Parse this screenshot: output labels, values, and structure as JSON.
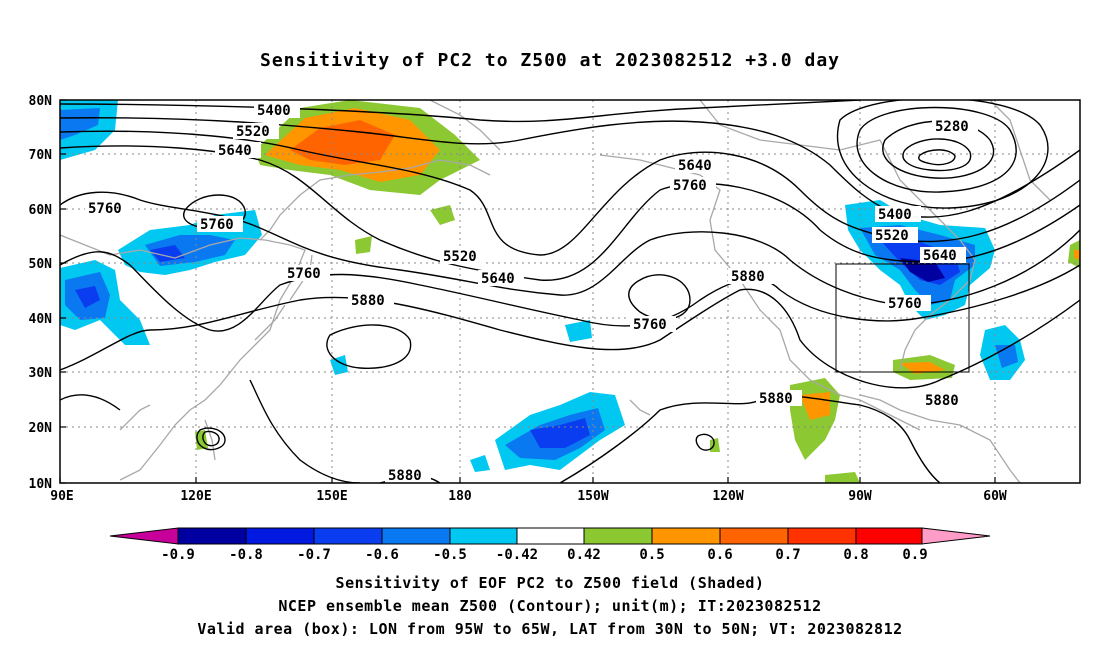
{
  "title": "Sensitivity of PC2 to Z500 at 2023082512 +3.0 day",
  "map": {
    "lat_labels": [
      "80N",
      "70N",
      "60N",
      "50N",
      "40N",
      "30N",
      "20N",
      "10N"
    ],
    "lon_labels": [
      "90E",
      "120E",
      "150E",
      "180",
      "150W",
      "120W",
      "90W",
      "60W"
    ],
    "valid_box": {
      "lon_from": "95W",
      "lon_to": "65W",
      "lat_from": "30N",
      "lat_to": "50N"
    },
    "contour_labels": [
      {
        "text": "5400",
        "id": "c5400a"
      },
      {
        "text": "5520",
        "id": "c5520a"
      },
      {
        "text": "5640",
        "id": "c5640a"
      },
      {
        "text": "5760",
        "id": "c5760a"
      },
      {
        "text": "5760",
        "id": "c5760b"
      },
      {
        "text": "5760",
        "id": "c5760c"
      },
      {
        "text": "5880",
        "id": "c5880a"
      },
      {
        "text": "5520",
        "id": "c5520b"
      },
      {
        "text": "5640",
        "id": "c5640b"
      },
      {
        "text": "5640",
        "id": "c5640c"
      },
      {
        "text": "5760",
        "id": "c5760d"
      },
      {
        "text": "5760",
        "id": "c5760e"
      },
      {
        "text": "5880",
        "id": "c5880b"
      },
      {
        "text": "5280",
        "id": "c5280"
      },
      {
        "text": "5400",
        "id": "c5400b"
      },
      {
        "text": "5520",
        "id": "c5520c"
      },
      {
        "text": "5640",
        "id": "c5640d"
      },
      {
        "text": "5760",
        "id": "c5760f"
      },
      {
        "text": "5880",
        "id": "c5880c"
      },
      {
        "text": "5880",
        "id": "c5880d"
      },
      {
        "text": "5880",
        "id": "c5880e"
      }
    ]
  },
  "colorbar": {
    "labels": [
      "-0.9",
      "-0.8",
      "-0.7",
      "-0.6",
      "-0.5",
      "-0.42",
      "0.42",
      "0.5",
      "0.6",
      "0.7",
      "0.8",
      "0.9"
    ],
    "colors": [
      "#c8009a",
      "#0000a0",
      "#0018e0",
      "#0a3cf0",
      "#0a78f0",
      "#00c8f0",
      "#ffffff",
      "#8cc832",
      "#ff9600",
      "#ff6400",
      "#ff3200",
      "#ff0000",
      "#ff9cc8"
    ]
  },
  "captions": [
    "Sensitivity of EOF PC2 to Z500 field (Shaded)",
    "NCEP ensemble mean Z500 (Contour); unit(m); IT:2023082512",
    "Valid area (box): LON from 95W to 65W, LAT from 30N to 50N; VT: 2023082812"
  ]
}
